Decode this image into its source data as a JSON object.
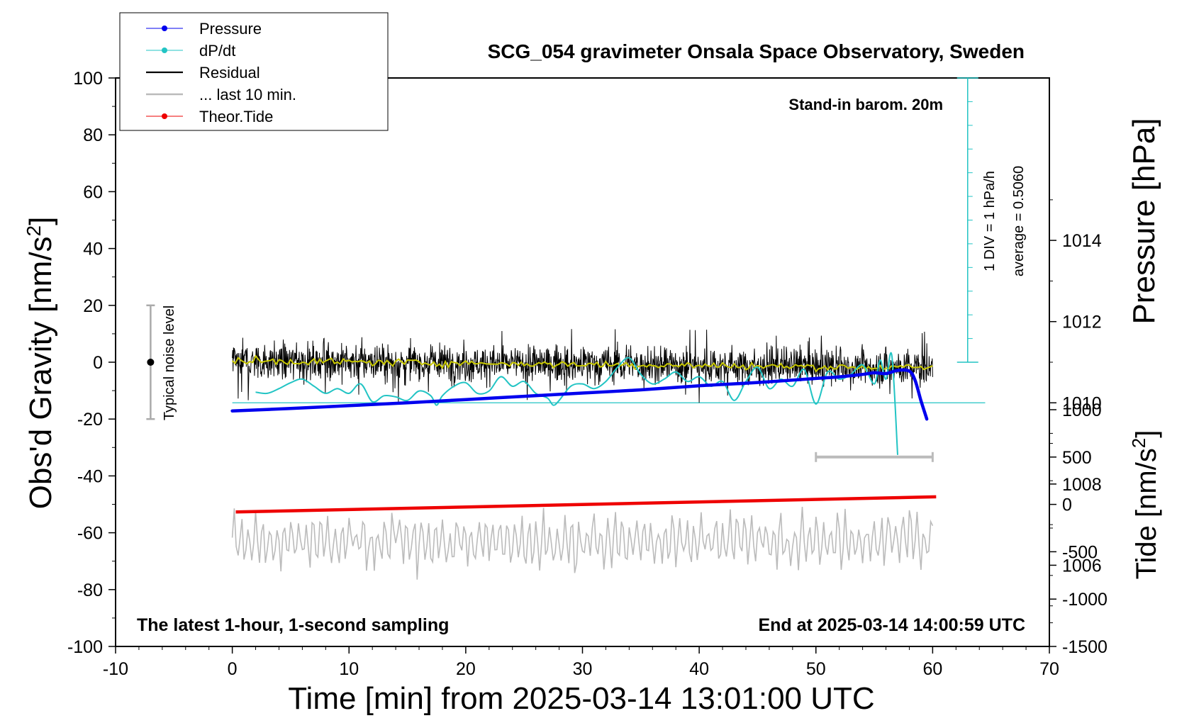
{
  "chart_data": {
    "type": "line",
    "title": "SCG_054 gravimeter Onsala Space Observatory, Sweden",
    "xlabel": "Time [min] from 2025-03-14 13:01:00 UTC",
    "ylabel": "Obs'd Gravity [nm/s²]",
    "ylabel_main": "Obs'd Gravity [nm/s",
    "ylabel_unit_sup": "2",
    "ylabel_unit_tail": "]",
    "y2label": "Pressure [hPa]",
    "y3label_main": "Tide [nm/s",
    "y3label_sup": "2",
    "y3label_tail": "]",
    "xlim": [
      -10,
      70
    ],
    "ylim": [
      -100,
      100
    ],
    "pressure_lim": [
      1004,
      1018
    ],
    "tide_lim": [
      -1500,
      1000
    ],
    "x_ticks": [
      "-10",
      "0",
      "10",
      "20",
      "30",
      "40",
      "50",
      "60",
      "70"
    ],
    "y_ticks": [
      "100",
      "80",
      "60",
      "40",
      "20",
      "0",
      "-20",
      "-40",
      "-60",
      "-80",
      "-100"
    ],
    "pressure_ticks": [
      "1014",
      "1012",
      "1010",
      "1008",
      "1006"
    ],
    "tide_ticks": [
      "1000",
      "500",
      "0",
      "-500",
      "-1000",
      "-1500"
    ],
    "annotations": {
      "stand_in": "Stand-in barom. 20m",
      "scale_div": "1 DIV = 1 hPa/h",
      "average": "average = 0.5060",
      "noise": "Typical noise level",
      "latest": "The latest 1-hour, 1-second sampling",
      "end_at": "End at 2025-03-14 14:00:59 UTC"
    },
    "legend": {
      "position": "top-left",
      "entries": [
        "Pressure",
        "dP/dt",
        "Residual",
        "... last 10 min.",
        "Theor.Tide"
      ]
    },
    "colors": {
      "pressure": "#0000ee",
      "dpdt": "#22c4c4",
      "residual": "#000000",
      "residual_smooth": "#c8c800",
      "last10": "#bbbbbb",
      "tide": "#ee0000",
      "frame": "#000000"
    },
    "series": [
      {
        "name": "Pressure",
        "axis": "pressure",
        "x": [
          0,
          5,
          10,
          15,
          20,
          25,
          30,
          35,
          40,
          45,
          50,
          52,
          54,
          55,
          56,
          57,
          58,
          58.5,
          59,
          59.5
        ],
        "values": [
          1009.8,
          1009.86,
          1009.93,
          1010.0,
          1010.08,
          1010.16,
          1010.24,
          1010.32,
          1010.42,
          1010.5,
          1010.6,
          1010.64,
          1010.7,
          1010.74,
          1010.72,
          1010.8,
          1010.78,
          1010.55,
          1010.05,
          1009.6
        ]
      },
      {
        "name": "dP/dt",
        "axis": "dpdt_div",
        "x": [
          2,
          3,
          4,
          5,
          6,
          7,
          8,
          9,
          10,
          11,
          12,
          13,
          14,
          15,
          16,
          17,
          17.5,
          18,
          19,
          20,
          21,
          22,
          23,
          24,
          25,
          26,
          27,
          27.5,
          28,
          29,
          30,
          31,
          32,
          33,
          34,
          35,
          36,
          37,
          38,
          39,
          40,
          41,
          42,
          43,
          44,
          45,
          46,
          47,
          48,
          49,
          50,
          51,
          52,
          53,
          54,
          55,
          55.5,
          56,
          56.5,
          57
        ],
        "values": [
          0.45,
          0.4,
          0.6,
          0.85,
          1.0,
          0.7,
          0.4,
          0.6,
          0.4,
          0.8,
          0.05,
          0.3,
          0.25,
          0.1,
          0.5,
          0.3,
          -0.1,
          0.3,
          0.7,
          0.85,
          0.4,
          0.5,
          1.1,
          0.7,
          0.9,
          0.4,
          0.2,
          -0.1,
          0.1,
          0.7,
          0.8,
          0.6,
          0.9,
          1.5,
          1.9,
          1.2,
          0.8,
          1.0,
          1.3,
          0.9,
          1.1,
          0.7,
          0.9,
          0.1,
          0.9,
          1.5,
          0.6,
          1.0,
          0.7,
          1.4,
          -0.05,
          1.3,
          1.0,
          1.2,
          1.6,
          0.8,
          1.8,
          1.0,
          2.0,
          -2.2
        ]
      },
      {
        "name": "Residual",
        "axis": "gravity",
        "x_range": [
          0,
          60
        ],
        "amplitude_typical": 5,
        "amplitude_max": 14,
        "trend_start": 0.5,
        "trend_end": -2
      },
      {
        "name": "... last 10 min.",
        "axis": "gravity",
        "x_range": [
          0,
          60
        ],
        "mean": -63,
        "amplitude": 8
      },
      {
        "name": "Theor.Tide",
        "axis": "tide",
        "x": [
          0.3,
          60.3
        ],
        "values": [
          -80,
          80
        ]
      }
    ],
    "noise_bar": {
      "x": -7,
      "y_low": -20,
      "y_high": 20,
      "center": 0
    },
    "last10_marker": {
      "x_start": 50,
      "x_end": 60,
      "tide_level": 500
    },
    "dpdt_scale": {
      "x": 63,
      "zero_pressure": 1010,
      "divisions": 12,
      "y_top": 100,
      "y_bottom": 0
    }
  }
}
